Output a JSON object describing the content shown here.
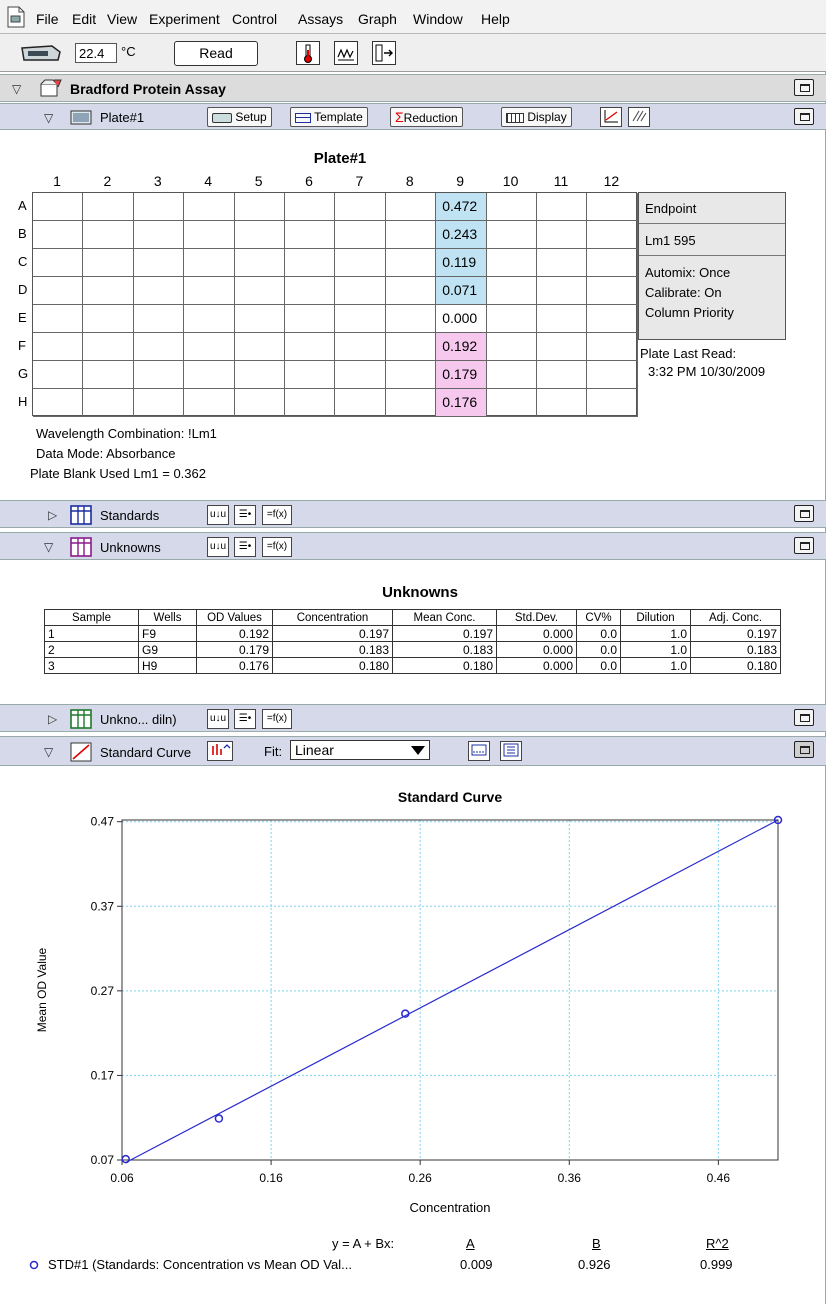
{
  "menubar": {
    "items": [
      "File",
      "Edit",
      "View",
      "Experiment",
      "Control",
      "Assays",
      "Graph",
      "Window",
      "Help"
    ]
  },
  "toolbar": {
    "temperature_value": "22.4",
    "temperature_unit": "°C",
    "read_label": "Read",
    "icons": [
      "reader-icon",
      "thermometer-icon",
      "spectrum-icon",
      "plate-drawer-icon"
    ]
  },
  "experiment": {
    "title": "Bradford Protein Assay"
  },
  "plate_section": {
    "title": "Plate#1",
    "buttons": [
      "Setup",
      "Template",
      "Reduction",
      "Display"
    ]
  },
  "plate": {
    "title": "Plate#1",
    "columns": [
      "1",
      "2",
      "3",
      "4",
      "5",
      "6",
      "7",
      "8",
      "9",
      "10",
      "11",
      "12"
    ],
    "rows": [
      "A",
      "B",
      "C",
      "D",
      "E",
      "F",
      "G",
      "H"
    ],
    "column9_values": [
      "0.472",
      "0.243",
      "0.119",
      "0.071",
      "0.000",
      "0.192",
      "0.179",
      "0.176"
    ],
    "column9_colors": [
      "#bfe3f2",
      "#bfe3f2",
      "#bfe3f2",
      "#bfe3f2",
      "#ffffff",
      "#f6c8ee",
      "#f6c8ee",
      "#f6c8ee"
    ],
    "info": {
      "read_type": "Endpoint",
      "wavelength": "Lm1  595",
      "automix": "Automix: Once",
      "calibrate": "Calibrate: On",
      "priority": "Column Priority"
    },
    "last_read_label": "Plate Last Read:",
    "last_read_value": "3:32 PM  10/30/2009",
    "wavelength_combination": "Wavelength Combination: !Lm1",
    "data_mode": "Data Mode: Absorbance",
    "plate_blank": "Plate Blank Used   Lm1 = 0.362"
  },
  "sections": {
    "standards": "Standards",
    "unknowns": "Unknowns",
    "unknowns_diln": "Unkno... diln)",
    "standard_curve": "Standard Curve"
  },
  "fit": {
    "label": "Fit:",
    "value": "Linear"
  },
  "unknowns_table": {
    "title": "Unknowns",
    "headers": [
      "Sample",
      "Wells",
      "OD Values",
      "Concentration",
      "Mean Conc.",
      "Std.Dev.",
      "CV%",
      "Dilution",
      "Adj. Conc."
    ],
    "rows": [
      [
        "1",
        "F9",
        "0.192",
        "0.197",
        "0.197",
        "0.000",
        "0.0",
        "1.0",
        "0.197"
      ],
      [
        "2",
        "G9",
        "0.179",
        "0.183",
        "0.183",
        "0.000",
        "0.0",
        "1.0",
        "0.183"
      ],
      [
        "3",
        "H9",
        "0.176",
        "0.180",
        "0.180",
        "0.000",
        "0.0",
        "1.0",
        "0.180"
      ]
    ]
  },
  "chart_data": {
    "type": "scatter",
    "title": "Standard Curve",
    "xlabel": "Concentration",
    "ylabel": "Mean OD Value",
    "xlim": [
      0.06,
      0.5
    ],
    "ylim": [
      0.07,
      0.472
    ],
    "xticks": [
      "0.06",
      "0.16",
      "0.26",
      "0.36",
      "0.46"
    ],
    "yticks": [
      "0.07",
      "0.17",
      "0.27",
      "0.37",
      "0.47"
    ],
    "grid": true,
    "series": [
      {
        "name": "STD#1 (Standards: Concentration vs Mean OD Val...",
        "x": [
          0.0625,
          0.125,
          0.25,
          0.5
        ],
        "y": [
          0.071,
          0.119,
          0.243,
          0.472
        ],
        "color": "#2a2ad0"
      }
    ],
    "fit_line": {
      "x": [
        0.0625,
        0.5
      ],
      "y": [
        0.067,
        0.472
      ]
    },
    "equation_label": "y = A + Bx:",
    "coefficient_headers": [
      "A",
      "B",
      "R^2"
    ],
    "coefficients": [
      "0.009",
      "0.926",
      "0.999"
    ]
  }
}
